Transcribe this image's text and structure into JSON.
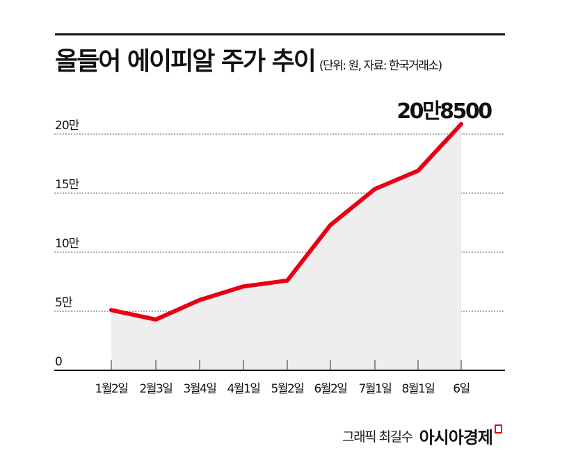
{
  "header": {
    "title": "올들어 에이피알 주가 추이",
    "subtitle": "(단위: 원, 자료: 한국거래소)"
  },
  "chart_data": {
    "type": "line",
    "title": "올들어 에이피알 주가 추이",
    "subtitle": "(단위: 원, 자료: 한국거래소)",
    "xlabel": "",
    "ylabel": "원",
    "categories": [
      "1월2일",
      "2월3일",
      "3월4일",
      "4월1일",
      "5월2일",
      "6월2일",
      "7월1일",
      "8월1일",
      "6일"
    ],
    "series": [
      {
        "name": "에이피알 주가",
        "values": [
          51000,
          43000,
          59500,
          71000,
          76000,
          123000,
          153500,
          169000,
          208500
        ]
      }
    ],
    "y_ticks": [
      0,
      50000,
      100000,
      150000,
      200000
    ],
    "y_tick_labels": [
      "0",
      "5만",
      "10만",
      "15만",
      "20만"
    ],
    "ylim": [
      0,
      200000
    ],
    "grid": "dotted horizontal",
    "area_fill": true,
    "line_color": "#e60012",
    "fill_color": "#eeeeee",
    "annotations": [
      {
        "category": "6일",
        "text": "20만8500"
      }
    ]
  },
  "footer": {
    "credit": "그래픽 최길수",
    "brand": "아시아경제"
  }
}
